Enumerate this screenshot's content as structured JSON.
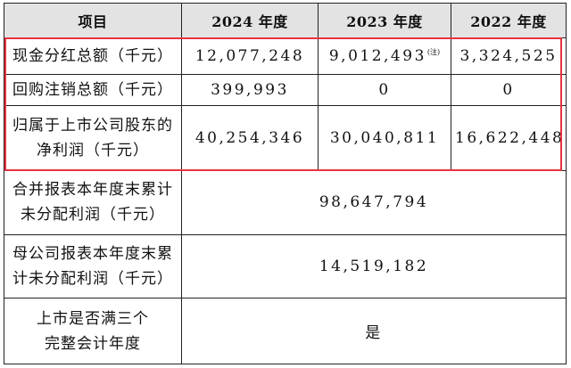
{
  "table": {
    "headers": [
      "项目",
      "2024 年度",
      "2023 年度",
      "2022 年度"
    ],
    "rows": [
      {
        "label": "现金分红总额（千元）",
        "y2024": "12,077,248",
        "y2023": "9,012,493",
        "y2023_note": "(注)",
        "y2022": "3,324,525"
      },
      {
        "label": "回购注销总额（千元）",
        "y2024": "399,993",
        "y2023": "0",
        "y2022": "0"
      },
      {
        "label_line1": "归属于上市公司股东的",
        "label_line2": "净利润（千元）",
        "y2024": "40,254,346",
        "y2023": "30,040,811",
        "y2022": "16,622,448"
      },
      {
        "label_line1": "合并报表本年度末累计",
        "label_line2": "未分配利润（千元）",
        "value": "98,647,794"
      },
      {
        "label_line1": "母公司报表本年度末累",
        "label_line2": "计未分配利润（千元）",
        "value": "14,519,182"
      },
      {
        "label_line1": "上市是否满三个",
        "label_line2": "完整会计年度",
        "value": "是"
      }
    ]
  },
  "highlight_color": "#e8333f"
}
